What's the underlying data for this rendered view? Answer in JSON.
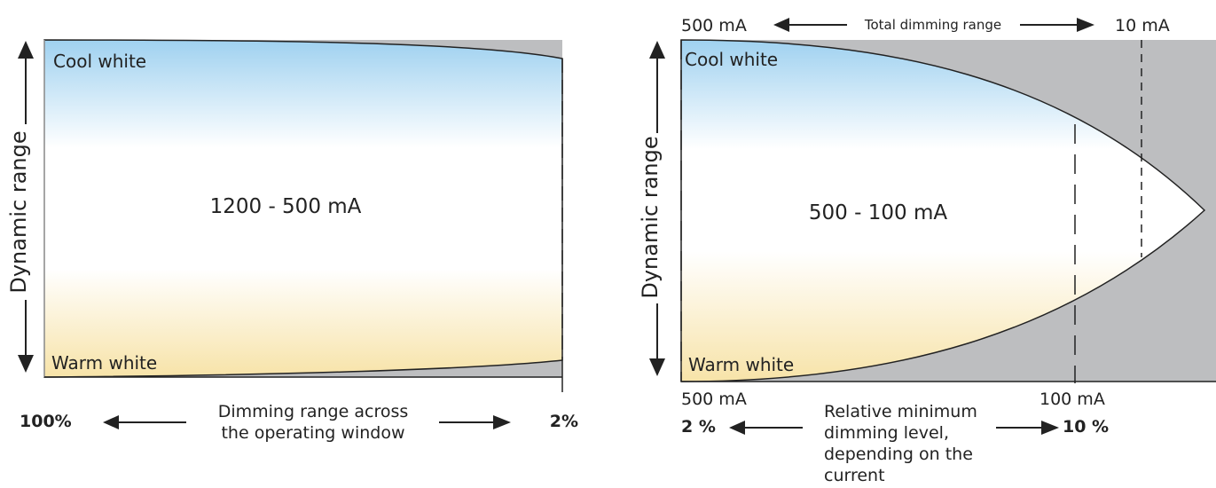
{
  "left": {
    "y_axis_label": "Dynamic range",
    "top_label": "Cool white",
    "bottom_label": "Warm white",
    "center_label": "1200 - 500 mA",
    "bottom_left_percent": "100%",
    "bottom_right_percent": "2%",
    "bottom_caption": [
      "Dimming range across",
      "the operating window"
    ]
  },
  "right": {
    "y_axis_label": "Dynamic range",
    "top_left_current": "500 mA",
    "top_right_current": "10 mA",
    "top_caption": "Total dimming range",
    "top_label": "Cool white",
    "bottom_label": "Warm white",
    "center_label": "500 - 100 mA",
    "bottom_left_current": "500 mA",
    "bottom_mid_current": "100 mA",
    "bottom_left_percent": "2 %",
    "bottom_right_percent": "10 %",
    "bottom_caption": [
      "Relative minimum",
      "dimming level,",
      "depending on the",
      "current"
    ]
  },
  "colors": {
    "cool": "#9fd1f0",
    "warm": "#f7e3a8",
    "gray": "#bdbec0",
    "line": "#222222"
  }
}
